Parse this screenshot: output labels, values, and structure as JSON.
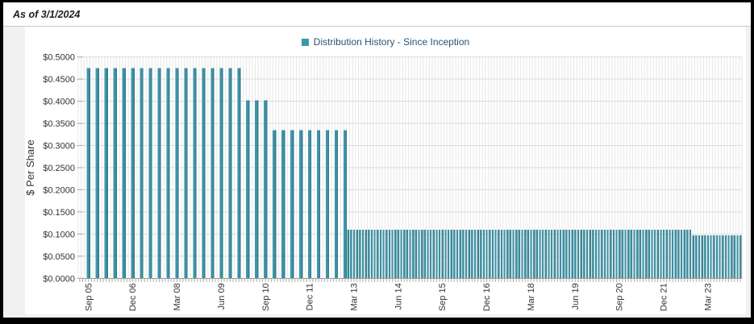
{
  "header": {
    "as_of": "As of 3/1/2024"
  },
  "legend": {
    "label": "Distribution History - Since Inception",
    "swatch_color": "#3a98aa",
    "position": "top-center"
  },
  "chart_data": {
    "type": "bar",
    "title": "Distribution History - Since Inception",
    "xlabel": "",
    "ylabel": "$ Per Share",
    "ylim": [
      0,
      0.5
    ],
    "ytick_step": 0.05,
    "ytick_labels": [
      "$0.0000",
      "$0.0500",
      "$0.1000",
      "$0.1500",
      "$0.2000",
      "$0.2500",
      "$0.3000",
      "$0.3500",
      "$0.4000",
      "$0.4500",
      "$0.5000"
    ],
    "xtick_labels": [
      "Sep 05",
      "Dec 06",
      "Mar 08",
      "Jun 09",
      "Sep 10",
      "Dec 11",
      "Mar 13",
      "Jun 14",
      "Sep 15",
      "Dec 16",
      "Mar 18",
      "Jun 19",
      "Sep 20",
      "Dec 21",
      "Mar 23"
    ],
    "first_label_month": "2005-09",
    "label_spacing_months": 15,
    "x_domain": {
      "start_month": "2005-06",
      "end_month": "2024-02",
      "total_months": 225
    },
    "grid": {
      "horizontal_every": 0.05,
      "vertical_monthly": true
    },
    "bar_color": "#3a8fa1",
    "bar_color_light": "#469cae",
    "bar_color_dark": "#276f81",
    "axis_color": "#999999",
    "gridline_color_h": "#dcdcdc",
    "gridline_color_v": "#e7e7e7",
    "label_color": "#333333",
    "n_bars_total": 164,
    "segments": [
      {
        "start": "2005-09",
        "frequency": "quarterly",
        "count": 18,
        "value": 0.475,
        "period": "Sep 2005 - Dec 2009"
      },
      {
        "start": "2010-03",
        "frequency": "quarterly",
        "count": 3,
        "value": 0.4025,
        "period": "Mar 2010 - Sep 2010"
      },
      {
        "start": "2010-12",
        "frequency": "quarterly",
        "count": 9,
        "value": 0.335,
        "period": "Dec 2010 - Dec 2012"
      },
      {
        "start": "2013-01",
        "frequency": "monthly",
        "count": 117,
        "value": 0.11,
        "period": "Jan 2013 - Sep 2022"
      },
      {
        "start": "2022-10",
        "frequency": "monthly",
        "count": 17,
        "value": 0.0975,
        "period": "Oct 2022 - Feb 2024"
      }
    ]
  }
}
